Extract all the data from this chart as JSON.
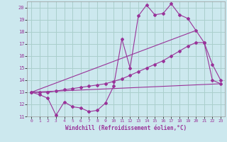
{
  "xlabel": "Windchill (Refroidissement éolien,°C)",
  "background_color": "#cce8ee",
  "grid_color": "#aacfcc",
  "line_color": "#993399",
  "xlim": [
    -0.5,
    23.5
  ],
  "ylim": [
    11,
    20.5
  ],
  "xticks": [
    0,
    1,
    2,
    3,
    4,
    5,
    6,
    7,
    8,
    9,
    10,
    11,
    12,
    13,
    14,
    15,
    16,
    17,
    18,
    19,
    20,
    21,
    22,
    23
  ],
  "yticks": [
    11,
    12,
    13,
    14,
    15,
    16,
    17,
    18,
    19,
    20
  ],
  "curve1_x": [
    0,
    1,
    2,
    3,
    4,
    5,
    6,
    7,
    8,
    9,
    10,
    11,
    12,
    13,
    14,
    15,
    16,
    17,
    18,
    19,
    20,
    21,
    22,
    23
  ],
  "curve1_y": [
    13.0,
    12.8,
    12.5,
    11.1,
    12.2,
    11.8,
    11.7,
    11.4,
    11.5,
    12.1,
    13.5,
    17.4,
    15.0,
    19.3,
    20.2,
    19.4,
    19.5,
    20.3,
    19.4,
    19.1,
    18.1,
    17.1,
    15.3,
    14.0
  ],
  "curve2_x": [
    0,
    1,
    2,
    3,
    4,
    5,
    6,
    7,
    8,
    9,
    10,
    11,
    12,
    13,
    14,
    15,
    16,
    17,
    18,
    19,
    20,
    21,
    22,
    23
  ],
  "curve2_y": [
    13.0,
    13.0,
    13.0,
    13.1,
    13.2,
    13.3,
    13.4,
    13.5,
    13.6,
    13.7,
    13.9,
    14.1,
    14.4,
    14.7,
    15.0,
    15.3,
    15.6,
    16.0,
    16.4,
    16.8,
    17.1,
    17.1,
    14.0,
    13.7
  ],
  "curve3_x": [
    0,
    23
  ],
  "curve3_y": [
    13.0,
    13.7
  ],
  "curve4_x": [
    0,
    20
  ],
  "curve4_y": [
    13.0,
    18.1
  ]
}
